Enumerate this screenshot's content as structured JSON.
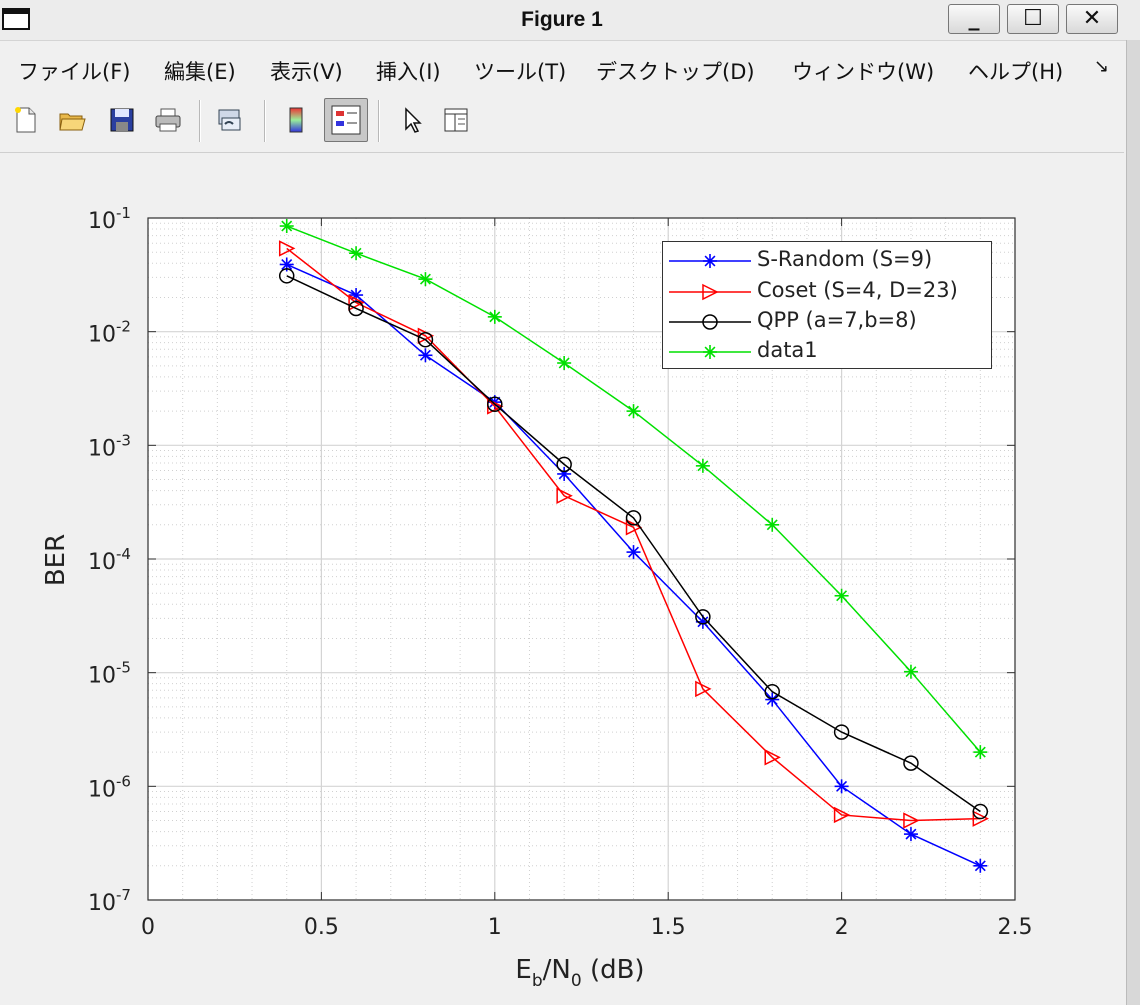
{
  "window": {
    "title": "Figure 1",
    "controls": [
      "_",
      "☐",
      "✕"
    ]
  },
  "menu": {
    "items": [
      "ファイル(F)",
      "編集(E)",
      "表示(V)",
      "挿入(I)",
      "ツール(T)",
      "デスクトップ(D)",
      "ウィンドウ(W)",
      "ヘルプ(H)"
    ],
    "more": "↘"
  },
  "toolbar": {
    "buttons": [
      "new-file-icon",
      "open-folder-icon",
      "save-icon",
      "print-icon",
      "link-axes-icon",
      "colorbar-icon",
      "legend-icon",
      "pointer-icon",
      "property-editor-icon"
    ],
    "pressed": "legend-icon"
  },
  "chart_data": {
    "type": "line",
    "title": "",
    "xlabel": "E_b/N_0 (dB)",
    "ylabel": "BER",
    "xlim": [
      0,
      2.5
    ],
    "ylim": [
      1e-07,
      0.1
    ],
    "yscale": "log",
    "grid": true,
    "minor_grid": true,
    "legend_position": "top-right",
    "xticks": [
      "0",
      "0.5",
      "1",
      "1.5",
      "2",
      "2.5"
    ],
    "yticks": [
      "10^-7",
      "10^-6",
      "10^-5",
      "10^-4",
      "10^-3",
      "10^-2",
      "10^-1"
    ],
    "series": [
      {
        "name": "S-Random (S=9)",
        "color": "#0000ff",
        "marker": "asterisk",
        "x": [
          0.4,
          0.6,
          0.8,
          1.0,
          1.2,
          1.4,
          1.6,
          1.8,
          2.0,
          2.2,
          2.4
        ],
        "y": [
          0.039,
          0.021,
          0.0062,
          0.0024,
          0.00056,
          0.000115,
          2.8e-05,
          5.8e-06,
          1e-06,
          3.8e-07,
          2e-07
        ]
      },
      {
        "name": "Coset (S=4, D=23)",
        "color": "#ff0000",
        "marker": "triangle-right",
        "x": [
          0.4,
          0.6,
          0.8,
          1.0,
          1.2,
          1.4,
          1.6,
          1.8,
          2.0,
          2.2,
          2.4
        ],
        "y": [
          0.054,
          0.018,
          0.0092,
          0.0022,
          0.00036,
          0.00019,
          7.2e-06,
          1.8e-06,
          5.6e-07,
          5e-07,
          5.2e-07
        ]
      },
      {
        "name": "QPP (a=7,b=8)",
        "color": "#000000",
        "marker": "circle",
        "x": [
          0.4,
          0.6,
          0.8,
          1.0,
          1.2,
          1.4,
          1.6,
          1.8,
          2.0,
          2.2,
          2.4
        ],
        "y": [
          0.031,
          0.016,
          0.0085,
          0.0023,
          0.00068,
          0.00023,
          3.1e-05,
          6.8e-06,
          3e-06,
          1.6e-06,
          6e-07
        ]
      },
      {
        "name": "data1",
        "color": "#00e000",
        "marker": "asterisk",
        "x": [
          0.4,
          0.6,
          0.8,
          1.0,
          1.2,
          1.4,
          1.6,
          1.8,
          2.0,
          2.2,
          2.4
        ],
        "y": [
          0.085,
          0.049,
          0.029,
          0.0135,
          0.0053,
          0.002,
          0.00066,
          0.0002,
          4.75e-05,
          1.02e-05,
          2e-06
        ]
      }
    ]
  }
}
